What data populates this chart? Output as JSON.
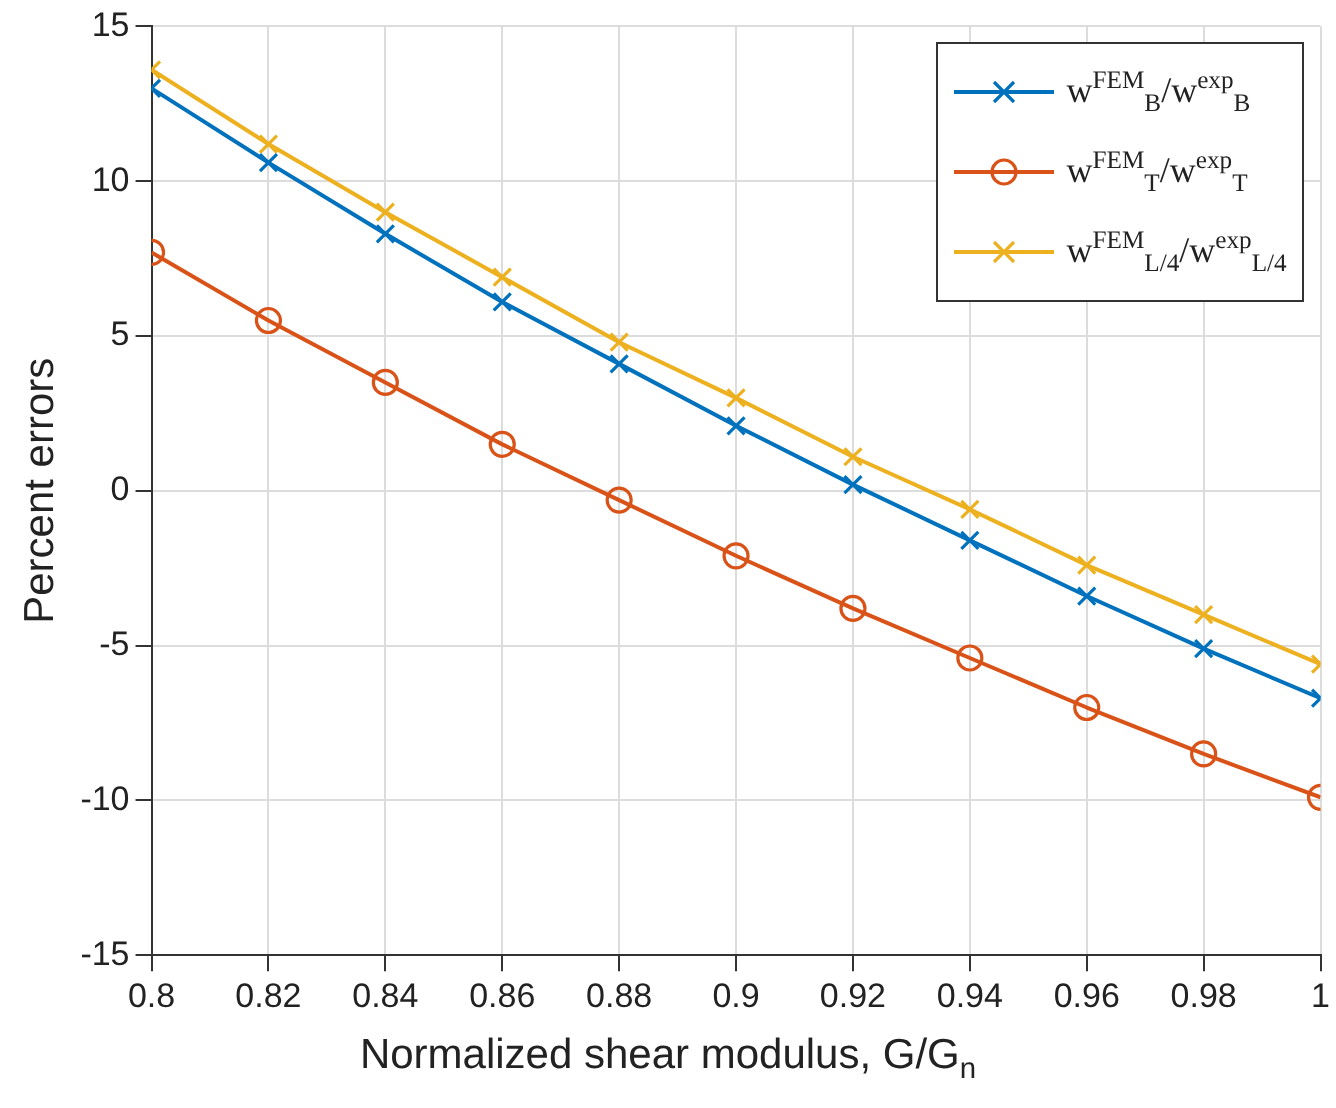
{
  "chart_data": {
    "type": "line",
    "xlabel": "Normalized shear modulus, G/G$_{n}$",
    "ylabel": "Percent errors",
    "x": [
      0.8,
      0.82,
      0.84,
      0.86,
      0.88,
      0.9,
      0.92,
      0.94,
      0.96,
      0.98,
      1
    ],
    "xlim": [
      0.8,
      1
    ],
    "xticks": [
      0.8,
      0.82,
      0.84,
      0.86,
      0.88,
      0.9,
      0.92,
      0.94,
      0.96,
      0.98,
      1
    ],
    "ylim": [
      -15,
      15
    ],
    "yticks": [
      -15,
      -10,
      -5,
      0,
      5,
      10,
      15
    ],
    "grid": true,
    "legend": "top right",
    "line_style": "solid",
    "series": [
      {
        "name": "w$^{FEM}$$_{B}$/w$^{exp}$$_{B}$",
        "color": "#0072bd",
        "marker": "cross",
        "values": [
          13.0,
          10.6,
          8.3,
          6.1,
          4.1,
          2.1,
          0.2,
          -1.6,
          -3.4,
          -5.1,
          -6.7
        ]
      },
      {
        "name": "w$^{FEM}$$_{T}$/w$^{exp}$$_{T}$",
        "color": "#d95319",
        "marker": "circle",
        "values": [
          7.7,
          5.5,
          3.5,
          1.5,
          -0.3,
          -2.1,
          -3.8,
          -5.4,
          -7.0,
          -8.5,
          -9.9
        ]
      },
      {
        "name": "w$^{FEM}$$_{L/4}$/w$^{exp}$$_{L/4}$",
        "color": "#edb120",
        "marker": "cross",
        "values": [
          13.6,
          11.2,
          9.0,
          6.9,
          4.8,
          3.0,
          1.1,
          -0.6,
          -2.4,
          -4.0,
          -5.6
        ]
      }
    ]
  }
}
